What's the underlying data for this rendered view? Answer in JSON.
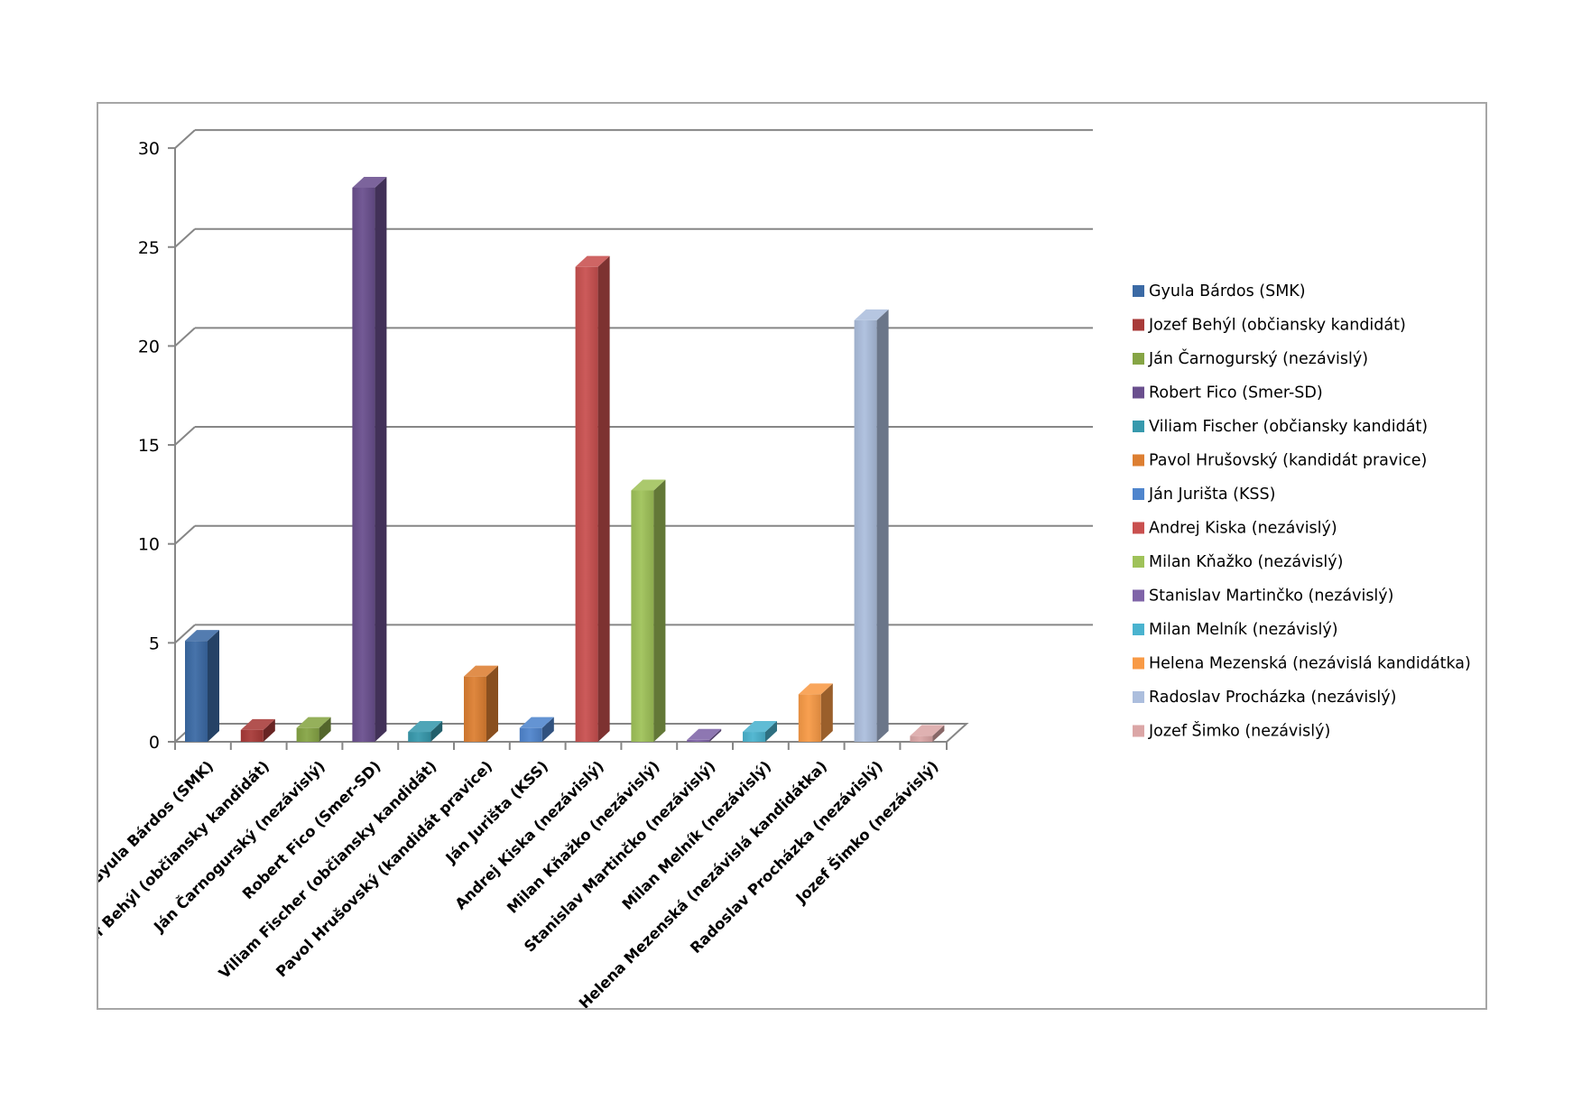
{
  "chart_data": {
    "type": "bar",
    "title": "",
    "xlabel": "",
    "ylabel": "",
    "ylim": [
      0,
      30
    ],
    "y_ticks": [
      "0",
      "5",
      "10",
      "15",
      "20",
      "25",
      "30"
    ],
    "grid": true,
    "legend_position": "right",
    "style": "3d-column",
    "categories": [
      "Gyula Bárdos (SMK)",
      "Jozef Behýl (občiansky kandidát)",
      "Ján Čarnogurský (nezávislý)",
      "Robert Fico (Smer-SD)",
      "Viliam Fischer (občiansky kandidát)",
      "Pavol Hrušovský (kandidát pravice)",
      "Ján Jurišta (KSS)",
      "Andrej Kiska (nezávislý)",
      "Milan Kňažko (nezávislý)",
      "Stanislav Martinčko (nezávislý)",
      "Milan Melník (nezávislý)",
      "Helena Mezenská (nezávislá kandidátka)",
      "Radoslav Procházka (nezávislý)",
      "Jozef Šimko (nezávislý)"
    ],
    "values": [
      5.1,
      0.6,
      0.7,
      28.0,
      0.5,
      3.3,
      0.7,
      24.0,
      12.7,
      0.1,
      0.5,
      2.4,
      21.3,
      0.3
    ],
    "colors": [
      "#3b6aa5",
      "#a83a38",
      "#86a545",
      "#6a4f8e",
      "#3799ad",
      "#dd7f32",
      "#4f85cd",
      "#c9504f",
      "#9fc259",
      "#7f64a8",
      "#4ab3cf",
      "#f89a46",
      "#acbedd",
      "#dba6a6"
    ]
  }
}
